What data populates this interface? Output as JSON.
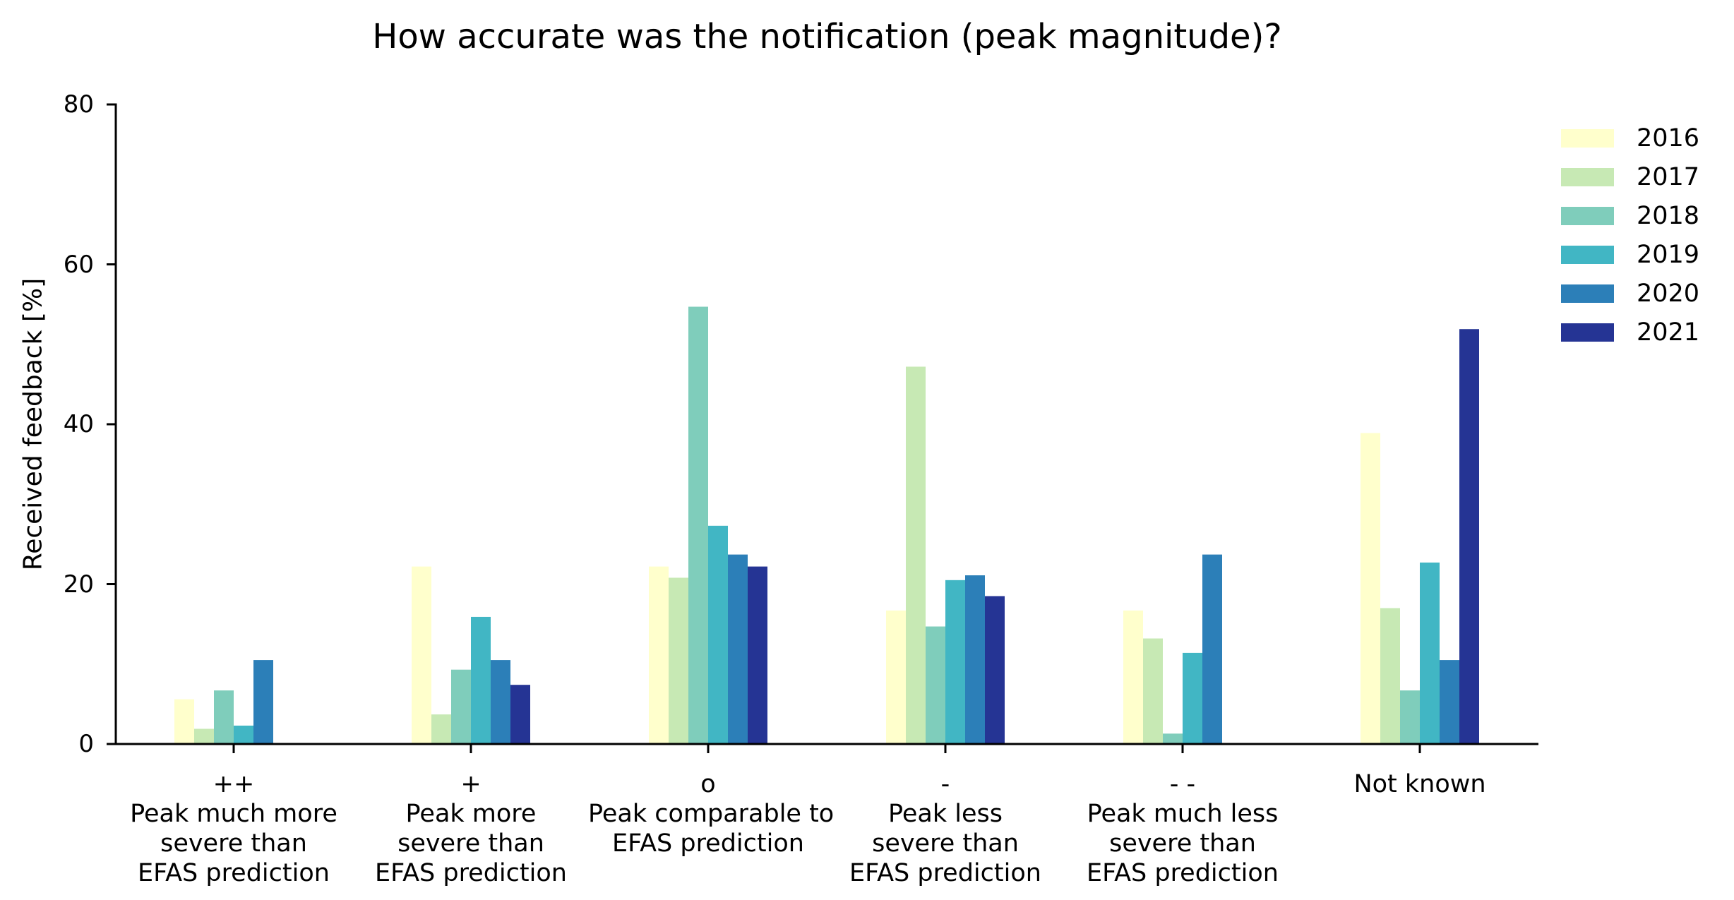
{
  "chart_data": {
    "type": "bar",
    "title": "How accurate was the notification (peak magnitude)?",
    "xlabel": "",
    "ylabel": "Received feedback [%]",
    "ylim": [
      0,
      80
    ],
    "yticks": [
      0,
      20,
      40,
      60,
      80
    ],
    "grid": false,
    "legend_position": "upper right, outside plot",
    "categories": [
      "++\nPeak much more\nsevere than\nEFAS prediction",
      "+\nPeak more\nsevere than\nEFAS prediction",
      "o\nPeak comparable to\nEFAS prediction",
      "-\nPeak less\nsevere than\nEFAS prediction",
      "- -\nPeak much less\nsevere than\nEFAS prediction",
      "Not known"
    ],
    "category_lines": [
      [
        "++",
        "Peak much more",
        "severe than",
        "EFAS prediction"
      ],
      [
        "+",
        "Peak more",
        "severe than",
        "EFAS prediction"
      ],
      [
        "o",
        "Peak comparable to",
        "EFAS prediction"
      ],
      [
        "-",
        "Peak less",
        "severe than",
        "EFAS prediction"
      ],
      [
        "- -",
        "Peak much less",
        "severe than",
        "EFAS prediction"
      ],
      [
        "Not known"
      ]
    ],
    "series": [
      {
        "name": "2016",
        "color": "#ffffcc",
        "values": [
          5.6,
          22.2,
          22.2,
          16.7,
          16.7,
          38.9
        ]
      },
      {
        "name": "2017",
        "color": "#c7e9b4",
        "values": [
          1.9,
          3.7,
          20.8,
          47.2,
          13.2,
          17.0
        ]
      },
      {
        "name": "2018",
        "color": "#7fcdbb",
        "values": [
          6.7,
          9.3,
          54.7,
          14.7,
          1.3,
          6.7
        ]
      },
      {
        "name": "2019",
        "color": "#41b6c4",
        "values": [
          2.3,
          15.9,
          27.3,
          20.5,
          11.4,
          22.7
        ]
      },
      {
        "name": "2020",
        "color": "#2c7fb8",
        "values": [
          10.5,
          10.5,
          23.7,
          21.1,
          23.7,
          10.5
        ]
      },
      {
        "name": "2021",
        "color": "#253494",
        "values": [
          0.0,
          7.4,
          22.2,
          18.5,
          0.0,
          51.9
        ]
      }
    ]
  }
}
